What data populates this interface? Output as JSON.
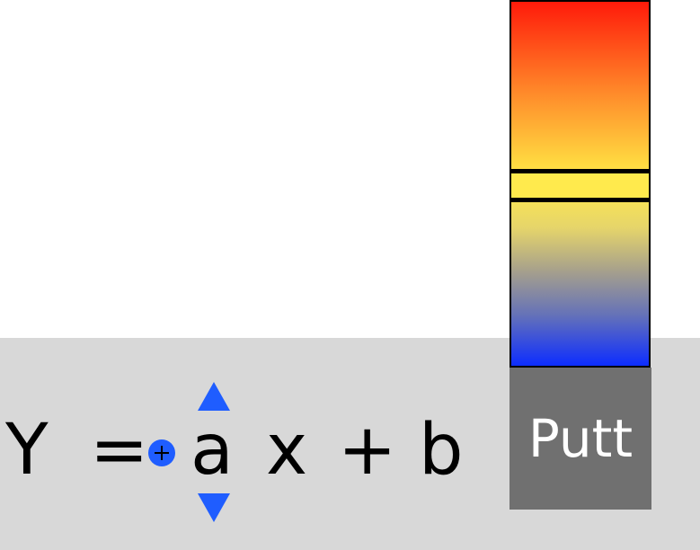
{
  "equation": {
    "lhs": "Y",
    "equals": "=",
    "coefficient": "a",
    "variable": "x",
    "operator": "+",
    "constant": "b"
  },
  "controls": {
    "add_icon": "plus-circle-icon",
    "increase_icon": "triangle-up-icon",
    "decrease_icon": "triangle-down-icon"
  },
  "power_meter": {
    "colors": [
      "#ff1a0a",
      "#ff8a2a",
      "#ffe94d",
      "#a6a08c",
      "#0d2dff"
    ]
  },
  "putt_button": {
    "label": "Putt"
  },
  "colors": {
    "accent": "#1f5dff",
    "panel_background": "#d8d8d8",
    "button_background": "#707070",
    "button_text": "#ffffff"
  }
}
